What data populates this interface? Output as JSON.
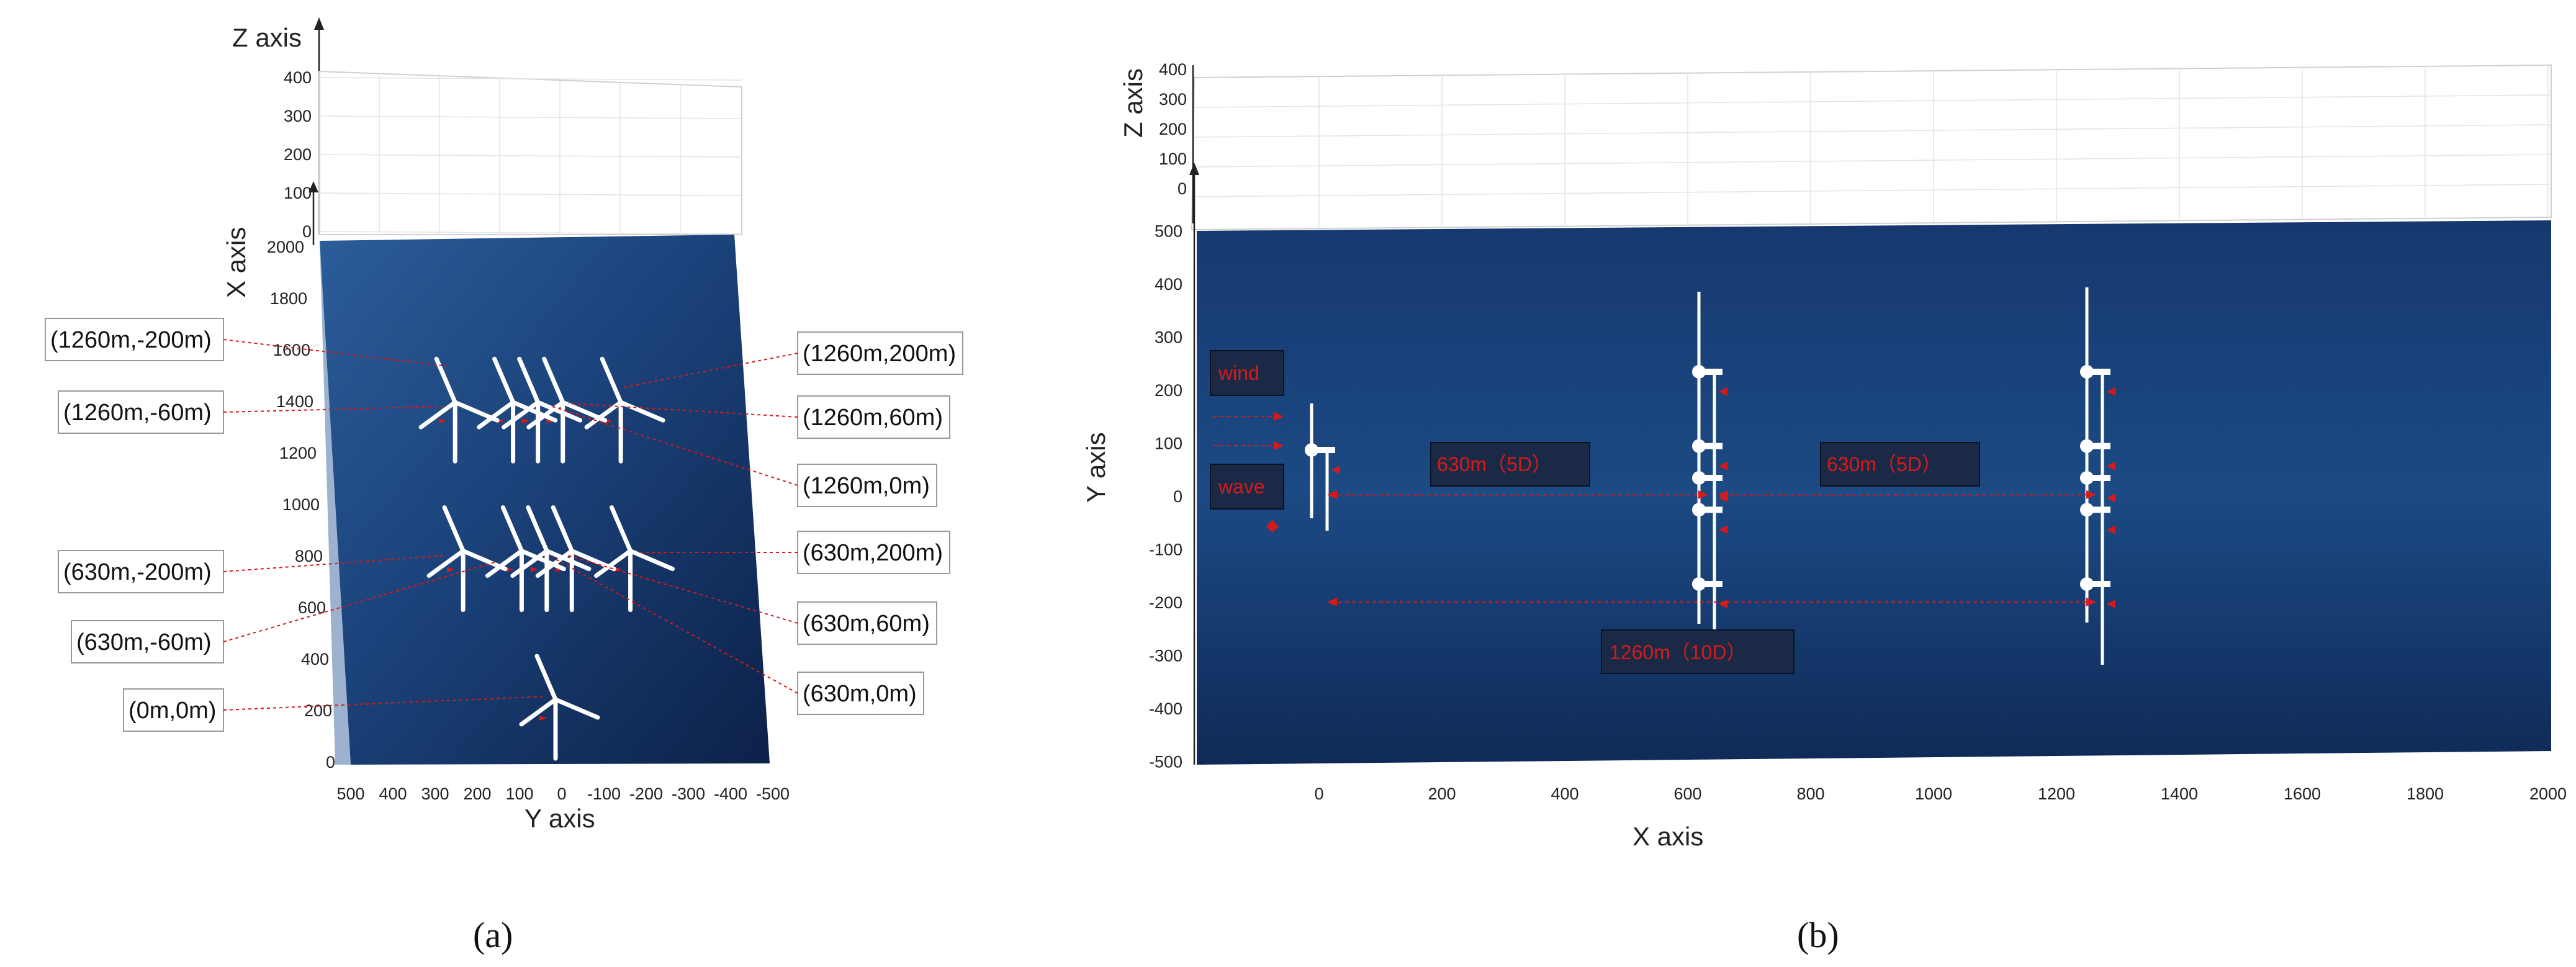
{
  "panel_a": {
    "label": "(a)",
    "z_axis_title": "Z axis",
    "x_axis_title": "X axis",
    "y_axis_title": "Y axis",
    "z_ticks": [
      "400",
      "300",
      "200",
      "100",
      "0"
    ],
    "x_ticks": [
      "2000",
      "1800",
      "1600",
      "1400",
      "1200",
      "1000",
      "800",
      "600",
      "400",
      "200",
      "0"
    ],
    "y_ticks": [
      "500",
      "400",
      "300",
      "200",
      "100",
      "0",
      "-100",
      "-200",
      "-300",
      "-400",
      "-500"
    ],
    "callouts_left": [
      "(1260m,-200m)",
      "(1260m,-60m)",
      "(630m,-200m)",
      "(630m,-60m)",
      "(0m,0m)"
    ],
    "callouts_right": [
      "(1260m,200m)",
      "(1260m,60m)",
      "(1260m,0m)",
      "(630m,200m)",
      "(630m,60m)",
      "(630m,0m)"
    ]
  },
  "panel_b": {
    "label": "(b)",
    "z_axis_title": "Z axis",
    "x_axis_title": "X axis",
    "y_axis_title": "Y axis",
    "z_ticks": [
      "400",
      "300",
      "200",
      "100",
      "0"
    ],
    "y_ticks": [
      "500",
      "400",
      "300",
      "200",
      "100",
      "0",
      "-100",
      "-200",
      "-300",
      "-400",
      "-500"
    ],
    "x_ticks": [
      "0",
      "200",
      "400",
      "600",
      "800",
      "1000",
      "1200",
      "1400",
      "1600",
      "1800",
      "2000"
    ],
    "wind_label": "wind",
    "wave_label": "wave",
    "spacing_label_1": "630m（5D）",
    "spacing_label_2": "630m（5D）",
    "spacing_label_3": "1260m（10D）"
  },
  "turbines": [
    {
      "x_m": 0,
      "y_m": 0
    },
    {
      "x_m": 630,
      "y_m": -200
    },
    {
      "x_m": 630,
      "y_m": -60
    },
    {
      "x_m": 630,
      "y_m": 0
    },
    {
      "x_m": 630,
      "y_m": 60
    },
    {
      "x_m": 630,
      "y_m": 200
    },
    {
      "x_m": 1260,
      "y_m": -200
    },
    {
      "x_m": 1260,
      "y_m": -60
    },
    {
      "x_m": 1260,
      "y_m": 0
    },
    {
      "x_m": 1260,
      "y_m": 60
    },
    {
      "x_m": 1260,
      "y_m": 200
    }
  ],
  "colors": {
    "sea_dark": "#0d2350",
    "sea_mid": "#1d4a82",
    "annotation_red": "#d61a1a",
    "turbine": "#ffffff"
  }
}
